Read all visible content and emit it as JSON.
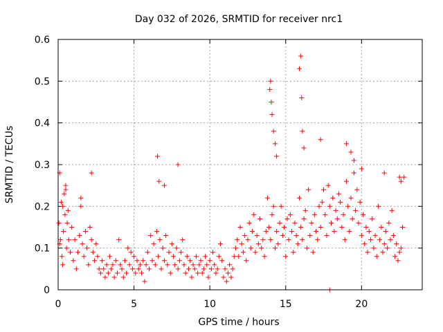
{
  "chart_data": {
    "type": "scatter",
    "title": "Day 032 of 2026, SRMTID for receiver nrc1",
    "xlabel": "GPS time / hours",
    "ylabel": "SRMTID / TECUs",
    "xlim": [
      0,
      24
    ],
    "ylim": [
      0,
      0.6
    ],
    "xticks": [
      0,
      5,
      10,
      15,
      20
    ],
    "xtick_labels": [
      "0",
      "5",
      "10",
      "15",
      "20"
    ],
    "yticks": [
      0,
      0.1,
      0.2,
      0.3,
      0.4,
      0.5,
      0.6
    ],
    "ytick_labels": [
      "0",
      "0.1",
      "0.2",
      "0.3",
      "0.4",
      "0.5",
      "0.6"
    ],
    "grid": true,
    "marker": "+",
    "color": "#ff0000",
    "series": [
      {
        "name": "nrc1",
        "x": [
          0.05,
          0.1,
          0.15,
          0.2,
          0.25,
          0.3,
          0.35,
          0.4,
          0.45,
          0.5,
          0.55,
          0.6,
          0.65,
          0.7,
          0.8,
          0.9,
          1.0,
          1.1,
          1.2,
          1.3,
          1.4,
          1.5,
          1.6,
          1.7,
          1.8,
          1.9,
          2.0,
          2.1,
          2.2,
          2.3,
          2.4,
          2.5,
          2.6,
          2.7,
          2.8,
          2.9,
          3.0,
          3.1,
          3.2,
          3.3,
          3.4,
          3.5,
          3.6,
          3.7,
          3.8,
          3.9,
          4.0,
          4.1,
          4.2,
          4.3,
          4.4,
          4.5,
          4.6,
          4.7,
          4.8,
          4.9,
          5.0,
          5.1,
          5.2,
          5.3,
          5.4,
          5.5,
          5.6,
          5.7,
          5.8,
          5.9,
          6.0,
          6.1,
          6.2,
          6.3,
          6.4,
          6.5,
          6.6,
          6.7,
          6.8,
          6.9,
          7.0,
          7.1,
          7.2,
          7.3,
          7.4,
          7.5,
          7.6,
          7.7,
          7.8,
          7.9,
          8.0,
          8.1,
          8.2,
          8.3,
          8.4,
          8.5,
          8.6,
          8.7,
          8.8,
          8.9,
          9.0,
          9.1,
          9.2,
          9.3,
          9.4,
          9.5,
          9.6,
          9.7,
          9.8,
          9.9,
          10.0,
          10.1,
          10.2,
          10.3,
          10.4,
          10.5,
          10.6,
          10.7,
          10.8,
          10.9,
          11.0,
          11.1,
          11.2,
          11.3,
          11.4,
          11.5,
          11.6,
          11.7,
          11.8,
          11.9,
          12.0,
          12.1,
          12.2,
          12.3,
          12.4,
          12.5,
          12.6,
          12.7,
          12.8,
          12.9,
          13.0,
          13.1,
          13.2,
          13.3,
          13.4,
          13.5,
          13.6,
          13.7,
          13.8,
          13.9,
          14.0,
          14.1,
          14.2,
          14.3,
          14.4,
          14.5,
          14.6,
          14.7,
          14.8,
          14.9,
          15.0,
          15.1,
          15.2,
          15.3,
          15.4,
          15.5,
          15.6,
          15.7,
          15.8,
          15.9,
          16.0,
          16.1,
          16.2,
          16.3,
          16.4,
          16.5,
          16.6,
          16.7,
          16.8,
          16.9,
          17.0,
          17.1,
          17.2,
          17.3,
          17.4,
          17.5,
          17.6,
          17.7,
          17.8,
          17.9,
          18.0,
          18.1,
          18.2,
          18.3,
          18.4,
          18.5,
          18.6,
          18.7,
          18.8,
          18.9,
          19.0,
          19.1,
          19.2,
          19.3,
          19.4,
          19.5,
          19.6,
          19.7,
          19.8,
          19.9,
          20.0,
          20.1,
          20.2,
          20.3,
          20.4,
          20.5,
          20.6,
          20.7,
          20.8,
          20.9,
          21.0,
          21.1,
          21.2,
          21.3,
          21.4,
          21.5,
          21.6,
          21.7,
          21.8,
          21.9,
          22.0,
          22.1,
          22.2,
          22.3,
          22.4,
          22.5,
          22.6,
          22.7,
          22.8,
          0.1,
          0.3,
          0.5,
          1.5,
          2.2,
          6.55,
          6.65,
          7.0,
          7.9,
          13.95,
          14.0,
          14.05,
          14.1,
          14.2,
          14.3,
          14.4,
          15.9,
          16.0,
          16.05,
          16.1,
          16.2,
          17.3,
          17.9,
          19.0,
          19.3,
          19.5,
          20.0,
          21.5,
          22.5,
          22.6
        ],
        "y": [
          0.16,
          0.28,
          0.12,
          0.21,
          0.08,
          0.06,
          0.14,
          0.23,
          0.18,
          0.25,
          0.1,
          0.16,
          0.19,
          0.12,
          0.09,
          0.15,
          0.07,
          0.12,
          0.05,
          0.09,
          0.13,
          0.2,
          0.11,
          0.08,
          0.14,
          0.1,
          0.06,
          0.15,
          0.12,
          0.09,
          0.07,
          0.11,
          0.08,
          0.05,
          0.04,
          0.07,
          0.05,
          0.03,
          0.06,
          0.04,
          0.08,
          0.05,
          0.06,
          0.03,
          0.07,
          0.04,
          0.12,
          0.06,
          0.05,
          0.03,
          0.07,
          0.04,
          0.1,
          0.06,
          0.09,
          0.05,
          0.08,
          0.04,
          0.07,
          0.05,
          0.06,
          0.04,
          0.07,
          0.02,
          0.06,
          0.09,
          0.05,
          0.13,
          0.07,
          0.11,
          0.06,
          0.14,
          0.08,
          0.12,
          0.05,
          0.1,
          0.07,
          0.13,
          0.06,
          0.09,
          0.04,
          0.11,
          0.08,
          0.06,
          0.1,
          0.05,
          0.07,
          0.09,
          0.12,
          0.06,
          0.04,
          0.08,
          0.05,
          0.07,
          0.03,
          0.06,
          0.05,
          0.08,
          0.04,
          0.06,
          0.07,
          0.04,
          0.05,
          0.08,
          0.06,
          0.03,
          0.07,
          0.05,
          0.09,
          0.06,
          0.04,
          0.05,
          0.08,
          0.11,
          0.07,
          0.03,
          0.05,
          0.02,
          0.04,
          0.06,
          0.03,
          0.05,
          0.08,
          0.1,
          0.12,
          0.08,
          0.15,
          0.11,
          0.09,
          0.13,
          0.07,
          0.12,
          0.16,
          0.1,
          0.14,
          0.18,
          0.09,
          0.13,
          0.11,
          0.17,
          0.1,
          0.12,
          0.08,
          0.14,
          0.22,
          0.15,
          0.12,
          0.18,
          0.2,
          0.1,
          0.14,
          0.11,
          0.16,
          0.2,
          0.13,
          0.15,
          0.08,
          0.17,
          0.12,
          0.18,
          0.14,
          0.09,
          0.16,
          0.13,
          0.11,
          0.22,
          0.15,
          0.12,
          0.17,
          0.19,
          0.1,
          0.24,
          0.13,
          0.16,
          0.09,
          0.18,
          0.14,
          0.12,
          0.2,
          0.15,
          0.21,
          0.24,
          0.18,
          0.13,
          0.25,
          0.2,
          0.16,
          0.22,
          0.14,
          0.19,
          0.17,
          0.23,
          0.21,
          0.15,
          0.18,
          0.12,
          0.26,
          0.2,
          0.14,
          0.22,
          0.17,
          0.28,
          0.19,
          0.24,
          0.16,
          0.21,
          0.13,
          0.18,
          0.11,
          0.15,
          0.09,
          0.14,
          0.12,
          0.17,
          0.1,
          0.13,
          0.08,
          0.2,
          0.12,
          0.15,
          0.09,
          0.11,
          0.14,
          0.1,
          0.16,
          0.12,
          0.19,
          0.13,
          0.08,
          0.11,
          0.07,
          0.09,
          0.1,
          0.15,
          0.27,
          0.11,
          0.2,
          0.24,
          0.22,
          0.28,
          0.32,
          0.26,
          0.25,
          0.3,
          0.48,
          0.5,
          0.45,
          0.42,
          0.38,
          0.35,
          0.32,
          0.53,
          0.56,
          0.46,
          0.38,
          0.34,
          0.36,
          0.0,
          0.35,
          0.33,
          0.31,
          0.29,
          0.28,
          0.27,
          0.26
        ]
      }
    ]
  }
}
